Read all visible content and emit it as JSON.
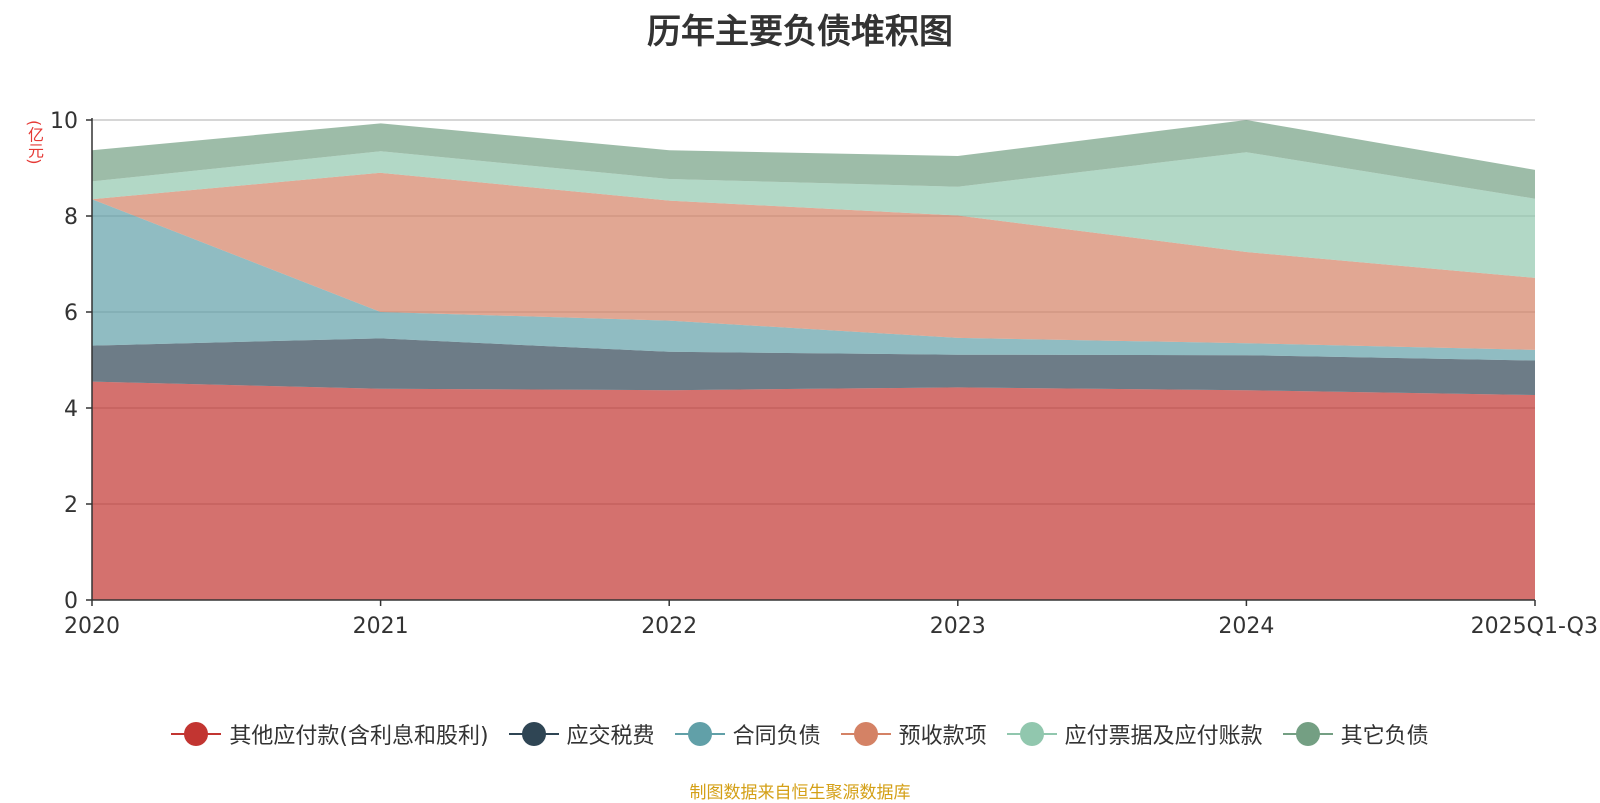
{
  "chart_data": {
    "type": "area",
    "stacked": true,
    "title": "历年主要负债堆积图",
    "ylabel": "(亿元)",
    "xlabel": "",
    "categories": [
      "2020",
      "2021",
      "2022",
      "2023",
      "2024",
      "2025Q1-Q3"
    ],
    "ylim": [
      0,
      10
    ],
    "yticks": [
      0,
      2,
      4,
      6,
      8,
      10
    ],
    "grid": true,
    "legend_position": "bottom",
    "series": [
      {
        "name": "其他应付款(含利息和股利)",
        "color": "#c23531",
        "values": [
          4.55,
          4.4,
          4.37,
          4.43,
          4.37,
          4.27
        ]
      },
      {
        "name": "应交税费",
        "color": "#2f4554",
        "values": [
          0.75,
          1.05,
          0.8,
          0.68,
          0.73,
          0.72
        ]
      },
      {
        "name": "合同负债",
        "color": "#61a0a8",
        "values": [
          3.05,
          0.55,
          0.65,
          0.35,
          0.25,
          0.22
        ]
      },
      {
        "name": "预收款项",
        "color": "#d48265",
        "values": [
          0.0,
          2.9,
          2.5,
          2.55,
          1.9,
          1.5
        ]
      },
      {
        "name": "应付票据及应付账款",
        "color": "#91c7ae",
        "values": [
          0.37,
          0.45,
          0.45,
          0.6,
          2.08,
          1.65
        ]
      },
      {
        "name": "其它负债",
        "color": "#749f83",
        "values": [
          0.65,
          0.58,
          0.6,
          0.64,
          0.67,
          0.6
        ]
      }
    ]
  },
  "source_note": "制图数据来自恒生聚源数据库"
}
